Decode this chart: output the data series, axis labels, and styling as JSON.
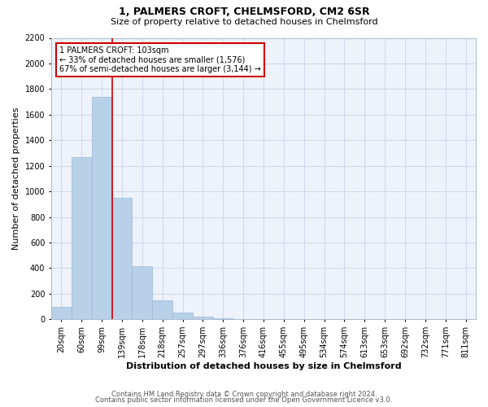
{
  "title": "1, PALMERS CROFT, CHELMSFORD, CM2 6SR",
  "subtitle": "Size of property relative to detached houses in Chelmsford",
  "xlabel": "Distribution of detached houses by size in Chelmsford",
  "ylabel": "Number of detached properties",
  "footnote1": "Contains HM Land Registry data © Crown copyright and database right 2024.",
  "footnote2": "Contains public sector information licensed under the Open Government Licence v3.0.",
  "categories": [
    "20sqm",
    "60sqm",
    "99sqm",
    "139sqm",
    "178sqm",
    "218sqm",
    "257sqm",
    "297sqm",
    "336sqm",
    "376sqm",
    "416sqm",
    "455sqm",
    "495sqm",
    "534sqm",
    "574sqm",
    "613sqm",
    "653sqm",
    "692sqm",
    "732sqm",
    "771sqm",
    "811sqm"
  ],
  "values": [
    100,
    1270,
    1740,
    950,
    415,
    150,
    50,
    20,
    8,
    3,
    2,
    1,
    1,
    0,
    0,
    0,
    0,
    0,
    0,
    0,
    0
  ],
  "bar_color": "#b8d0e8",
  "bar_edge_color": "#9ab8d8",
  "grid_color": "#ccd8ea",
  "background_color": "#eef2fa",
  "annotation_line1": "1 PALMERS CROFT: 103sqm",
  "annotation_line2": "← 33% of detached houses are smaller (1,576)",
  "annotation_line3": "67% of semi-detached houses are larger (3,144) →",
  "annotation_box_color": "#ffffff",
  "annotation_border_color": "#cc0000",
  "vline_color": "#cc0000",
  "vline_x_index": 2.5,
  "ylim": [
    0,
    2200
  ],
  "yticks": [
    0,
    200,
    400,
    600,
    800,
    1000,
    1200,
    1400,
    1600,
    1800,
    2000,
    2200
  ],
  "title_fontsize": 9,
  "subtitle_fontsize": 8,
  "xlabel_fontsize": 8,
  "ylabel_fontsize": 8,
  "tick_fontsize": 7,
  "annot_fontsize": 7,
  "footnote_fontsize": 6
}
